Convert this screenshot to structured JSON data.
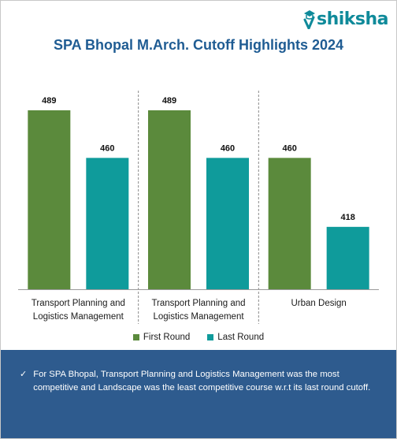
{
  "logo": {
    "text": "shiksha",
    "icon": "graduation-cap-icon"
  },
  "chart_data": {
    "type": "bar",
    "title": "SPA Bhopal M.Arch. Cutoff Highlights 2024",
    "categories": [
      [
        "Transport Planning and",
        "Logistics Management"
      ],
      [
        "Transport Planning and",
        "Logistics Management"
      ],
      [
        "Urban Design"
      ]
    ],
    "series": [
      {
        "name": "First Round",
        "color": "#5b8a3c",
        "values": [
          489,
          489,
          460
        ]
      },
      {
        "name": "Last Round",
        "color": "#0f9b9b",
        "values": [
          460,
          460,
          418
        ]
      }
    ],
    "xlabel": "",
    "ylabel": "",
    "ylim": [
      380,
      500
    ],
    "grid": false,
    "legend_position": "bottom",
    "data_labels": true
  },
  "footer": {
    "bullet_icon": "checkmark-icon",
    "text": "For SPA Bhopal, Transport Planning and Logistics Management was the most competitive and Landscape was the least competitive course w.r.t its last round cutoff."
  }
}
